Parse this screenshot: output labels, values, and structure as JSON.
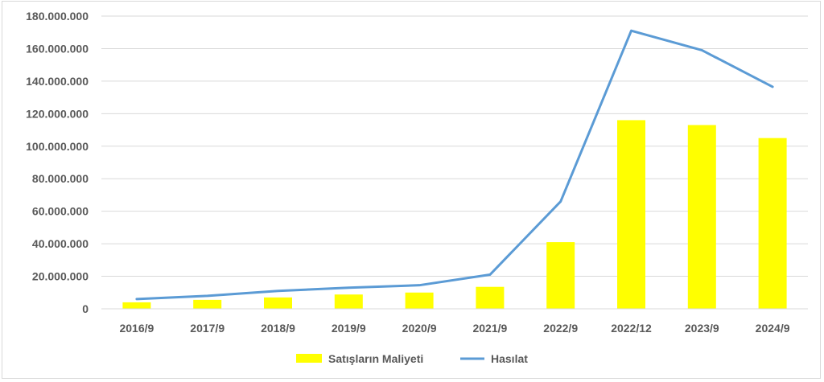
{
  "chart_data": {
    "type": "bar",
    "categories": [
      "2016/9",
      "2017/9",
      "2018/9",
      "2019/9",
      "2020/9",
      "2021/9",
      "2022/9",
      "2022/12",
      "2023/9",
      "2024/9"
    ],
    "series": [
      {
        "name": "Satışların Maliyeti",
        "type": "bar",
        "color": "#ffff00",
        "values": [
          4000000,
          5500000,
          7000000,
          8800000,
          10000000,
          13500000,
          41000000,
          116000000,
          113000000,
          105000000
        ]
      },
      {
        "name": "Hasılat",
        "type": "line",
        "color": "#5b9bd5",
        "values": [
          6000000,
          8000000,
          11000000,
          13000000,
          14500000,
          21000000,
          66000000,
          171000000,
          159000000,
          136500000
        ]
      }
    ],
    "y_ticks": [
      "0",
      "20.000.000",
      "40.000.000",
      "60.000.000",
      "80.000.000",
      "100.000.000",
      "120.000.000",
      "140.000.000",
      "160.000.000",
      "180.000.000"
    ],
    "ylim": [
      0,
      180000000
    ],
    "grid": true,
    "legend_position": "bottom"
  }
}
